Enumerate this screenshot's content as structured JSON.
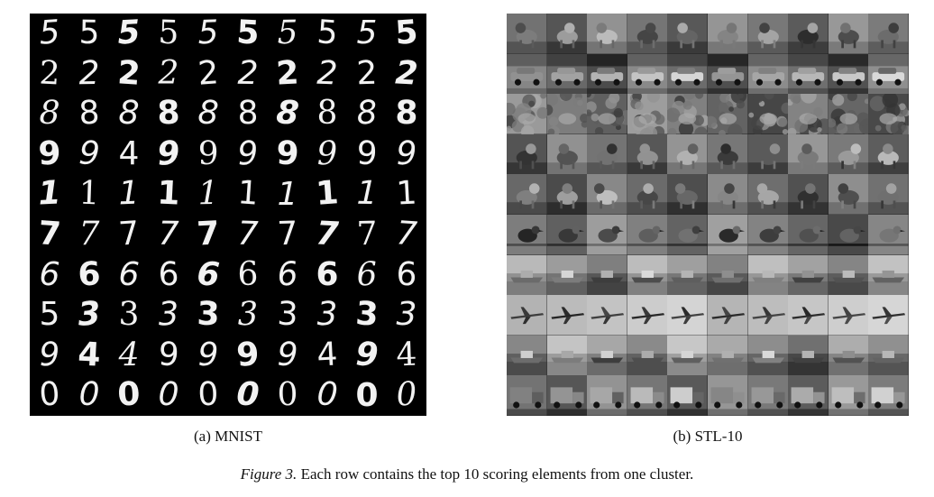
{
  "mnist": {
    "rows": [
      [
        "5",
        "5",
        "5",
        "5",
        "5",
        "5",
        "5",
        "5",
        "5",
        "5"
      ],
      [
        "2",
        "2",
        "2",
        "2",
        "2",
        "2",
        "2",
        "2",
        "2",
        "2"
      ],
      [
        "8",
        "8",
        "8",
        "8",
        "8",
        "8",
        "8",
        "8",
        "8",
        "8"
      ],
      [
        "9",
        "9",
        "4",
        "9",
        "9",
        "9",
        "9",
        "9",
        "9",
        "9"
      ],
      [
        "1",
        "1",
        "1",
        "1",
        "1",
        "1",
        "1",
        "1",
        "1",
        "1"
      ],
      [
        "7",
        "7",
        "7",
        "7",
        "7",
        "7",
        "7",
        "7",
        "7",
        "7"
      ],
      [
        "6",
        "6",
        "6",
        "6",
        "6",
        "6",
        "6",
        "6",
        "6",
        "6"
      ],
      [
        "5",
        "3",
        "3",
        "3",
        "3",
        "3",
        "3",
        "3",
        "3",
        "3"
      ],
      [
        "9",
        "4",
        "4",
        "9",
        "9",
        "9",
        "9",
        "4",
        "9",
        "4"
      ],
      [
        "0",
        "0",
        "0",
        "0",
        "0",
        "0",
        "0",
        "0",
        "0",
        "0"
      ]
    ]
  },
  "stl": {
    "row_scenes": [
      "animal-dog",
      "car",
      "foliage-cat",
      "animal-deer",
      "animal-cat",
      "bird",
      "ship",
      "airplane",
      "ship",
      "truck"
    ]
  },
  "captions": {
    "a": "(a) MNIST",
    "b": "(b) STL-10",
    "figure_label": "Figure 3.",
    "figure_text": " Each row contains the top 10 scoring elements from one cluster."
  }
}
